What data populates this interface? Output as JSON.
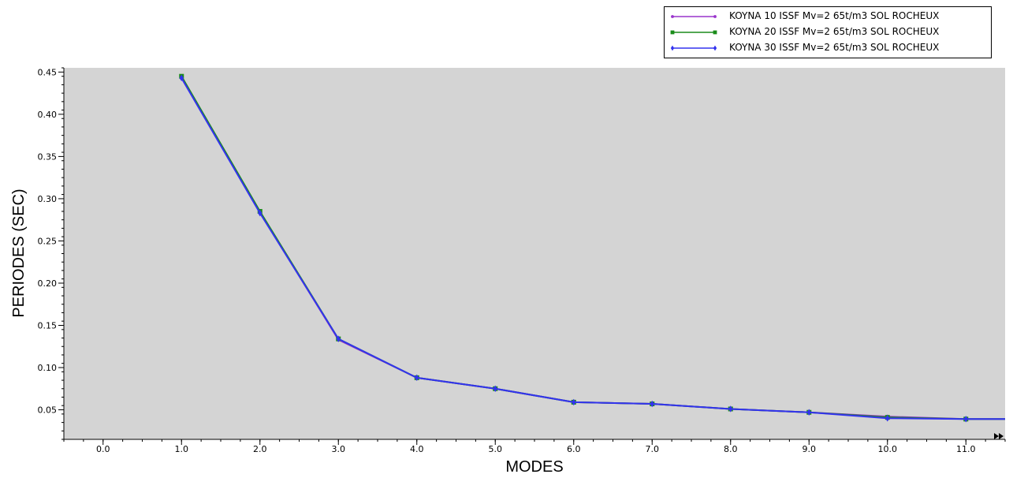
{
  "chart_data": {
    "type": "line",
    "title": "",
    "xlabel": "MODES",
    "ylabel": "PERIODES (SEC)",
    "xlim": [
      -0.5,
      11.5
    ],
    "ylim": [
      0.015,
      0.455
    ],
    "x_ticks": [
      "0.0",
      "1.0",
      "2.0",
      "3.0",
      "4.0",
      "5.0",
      "6.0",
      "7.0",
      "8.0",
      "9.0",
      "10.0",
      "11.0"
    ],
    "y_ticks": [
      "0.05",
      "0.10",
      "0.15",
      "0.20",
      "0.25",
      "0.30",
      "0.35",
      "0.40",
      "0.45"
    ],
    "grid": false,
    "legend_position": "top-right",
    "plot_background": "#d4d4d4",
    "series": [
      {
        "name": "KOYNA 10 ISSF Mv=2 65t/m3 SOL ROCHEUX",
        "color": "#9933cc",
        "marker": "circle",
        "x": [
          1,
          2,
          3,
          4,
          5,
          6,
          7,
          8,
          9,
          10,
          11,
          11.5
        ],
        "y": [
          0.443,
          0.284,
          0.133,
          0.088,
          0.075,
          0.059,
          0.057,
          0.051,
          0.047,
          0.042,
          0.039,
          0.039
        ]
      },
      {
        "name": "KOYNA 20 ISSF Mv=2 65t/m3 SOL ROCHEUX",
        "color": "#1a8c1a",
        "marker": "square",
        "x": [
          1,
          2,
          3,
          4,
          5,
          6,
          7,
          8,
          9,
          10,
          11,
          11.5
        ],
        "y": [
          0.445,
          0.285,
          0.134,
          0.088,
          0.075,
          0.059,
          0.057,
          0.051,
          0.047,
          0.041,
          0.039,
          0.039
        ]
      },
      {
        "name": "KOYNA 30 ISSF Mv=2 65t/m3 SOL ROCHEUX",
        "color": "#3333ee",
        "marker": "diamond",
        "x": [
          1,
          2,
          3,
          4,
          5,
          6,
          7,
          8,
          9,
          10,
          11,
          11.5
        ],
        "y": [
          0.443,
          0.283,
          0.134,
          0.088,
          0.075,
          0.059,
          0.057,
          0.051,
          0.047,
          0.04,
          0.039,
          0.039
        ]
      }
    ]
  }
}
